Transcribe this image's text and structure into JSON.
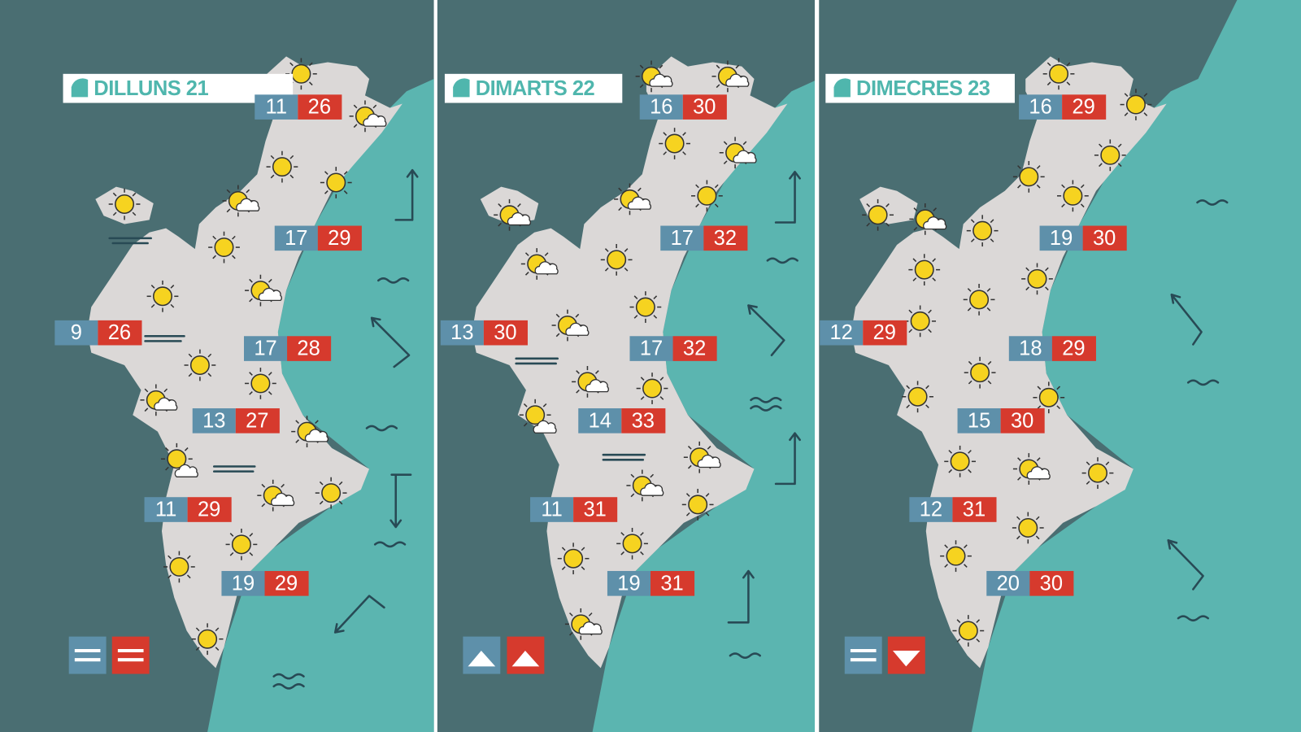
{
  "panels": [
    {
      "title": "DILLUNS 21",
      "temperatures": [
        {
          "min": 11,
          "max": 26
        },
        {
          "min": 17,
          "max": 29
        },
        {
          "min": 9,
          "max": 26
        },
        {
          "min": 17,
          "max": 28
        },
        {
          "min": 13,
          "max": 27
        },
        {
          "min": 11,
          "max": 29
        },
        {
          "min": 19,
          "max": 29
        }
      ]
    },
    {
      "title": "DIMARTS 22",
      "temperatures": [
        {
          "min": 16,
          "max": 30
        },
        {
          "min": 17,
          "max": 32
        },
        {
          "min": 13,
          "max": 30
        },
        {
          "min": 17,
          "max": 32
        },
        {
          "min": 14,
          "max": 33
        },
        {
          "min": 11,
          "max": 31
        },
        {
          "min": 19,
          "max": 31
        }
      ]
    },
    {
      "title": "DIMECRES 23",
      "temperatures": [
        {
          "min": 16,
          "max": 29
        },
        {
          "min": 19,
          "max": 30
        },
        {
          "min": 12,
          "max": 29
        },
        {
          "min": 18,
          "max": 29
        },
        {
          "min": 15,
          "max": 30
        },
        {
          "min": 12,
          "max": 31
        },
        {
          "min": 20,
          "max": 30
        }
      ]
    }
  ]
}
